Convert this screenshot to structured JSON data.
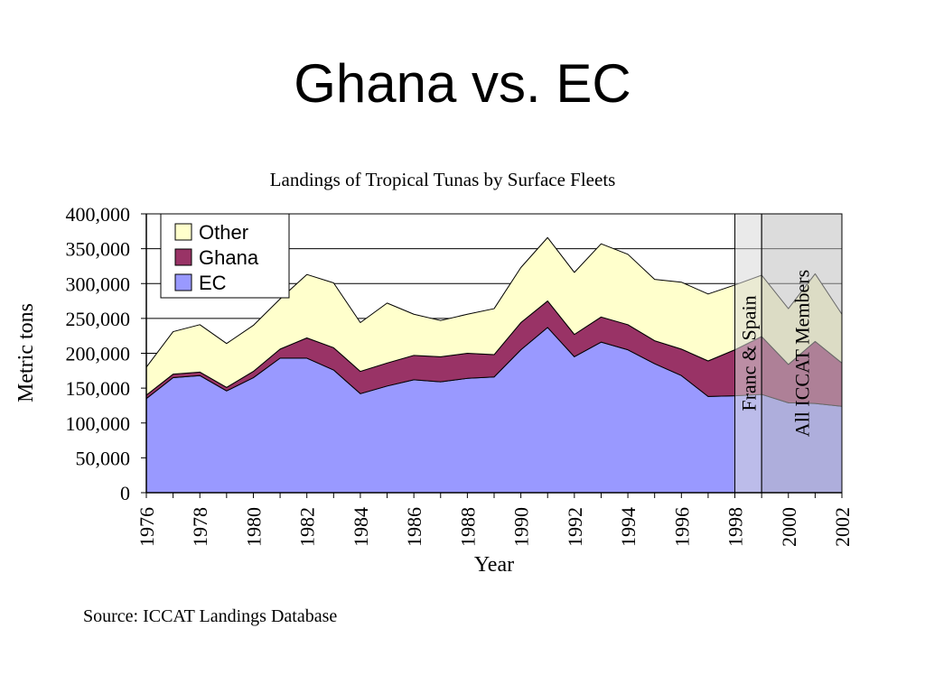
{
  "slide": {
    "title": "Ghana vs. EC",
    "source": "Source: ICCAT Landings Database"
  },
  "chart_data": {
    "type": "area",
    "stacked": true,
    "title": "Landings of Tropical Tunas by Surface Fleets",
    "xlabel": "Year",
    "ylabel": "Metric tons",
    "x": [
      1976,
      1977,
      1978,
      1979,
      1980,
      1981,
      1982,
      1983,
      1984,
      1985,
      1986,
      1987,
      1988,
      1989,
      1990,
      1991,
      1992,
      1993,
      1994,
      1995,
      1996,
      1997,
      1998,
      1999,
      2000,
      2001,
      2002
    ],
    "x_ticks": [
      "1976",
      "1978",
      "1980",
      "1982",
      "1984",
      "1986",
      "1988",
      "1990",
      "1992",
      "1994",
      "1996",
      "1998",
      "2000",
      "2002"
    ],
    "y_ticks": [
      "0",
      "50,000",
      "100,000",
      "150,000",
      "200,000",
      "250,000",
      "300,000",
      "350,000",
      "400,000"
    ],
    "ylim": [
      0,
      400000
    ],
    "grid": true,
    "legend_position": "top-left",
    "series": [
      {
        "name": "EC",
        "color": "#9999ff",
        "values": [
          135000,
          165000,
          168000,
          146000,
          165000,
          193000,
          193000,
          176000,
          142000,
          153000,
          162000,
          159000,
          164000,
          166000,
          205000,
          237000,
          195000,
          216000,
          205000,
          185000,
          168000,
          138000,
          139000,
          141000,
          129000,
          128000,
          124000
        ]
      },
      {
        "name": "Ghana",
        "color": "#993366",
        "values": [
          5000,
          5000,
          5000,
          5000,
          9000,
          13000,
          29000,
          32000,
          32000,
          33000,
          35000,
          36000,
          36000,
          32000,
          39000,
          38000,
          32000,
          36000,
          36000,
          33000,
          38000,
          51000,
          66000,
          83000,
          55000,
          89000,
          62000
        ]
      },
      {
        "name": "Other",
        "color": "#ffffcc",
        "values": [
          40000,
          61000,
          68000,
          63000,
          66000,
          72000,
          91000,
          93000,
          70000,
          86000,
          59000,
          52000,
          56000,
          66000,
          79000,
          91000,
          89000,
          105000,
          101000,
          88000,
          96000,
          96000,
          93000,
          88000,
          80000,
          97000,
          70000
        ]
      }
    ],
    "bands": [
      {
        "label": "Franc & Spain",
        "from": 1998,
        "to": 1999,
        "color": "#d9d9d9"
      },
      {
        "label": "All ICCAT Members",
        "from": 1999,
        "to": 2002,
        "color": "#c0c0c0"
      }
    ]
  }
}
